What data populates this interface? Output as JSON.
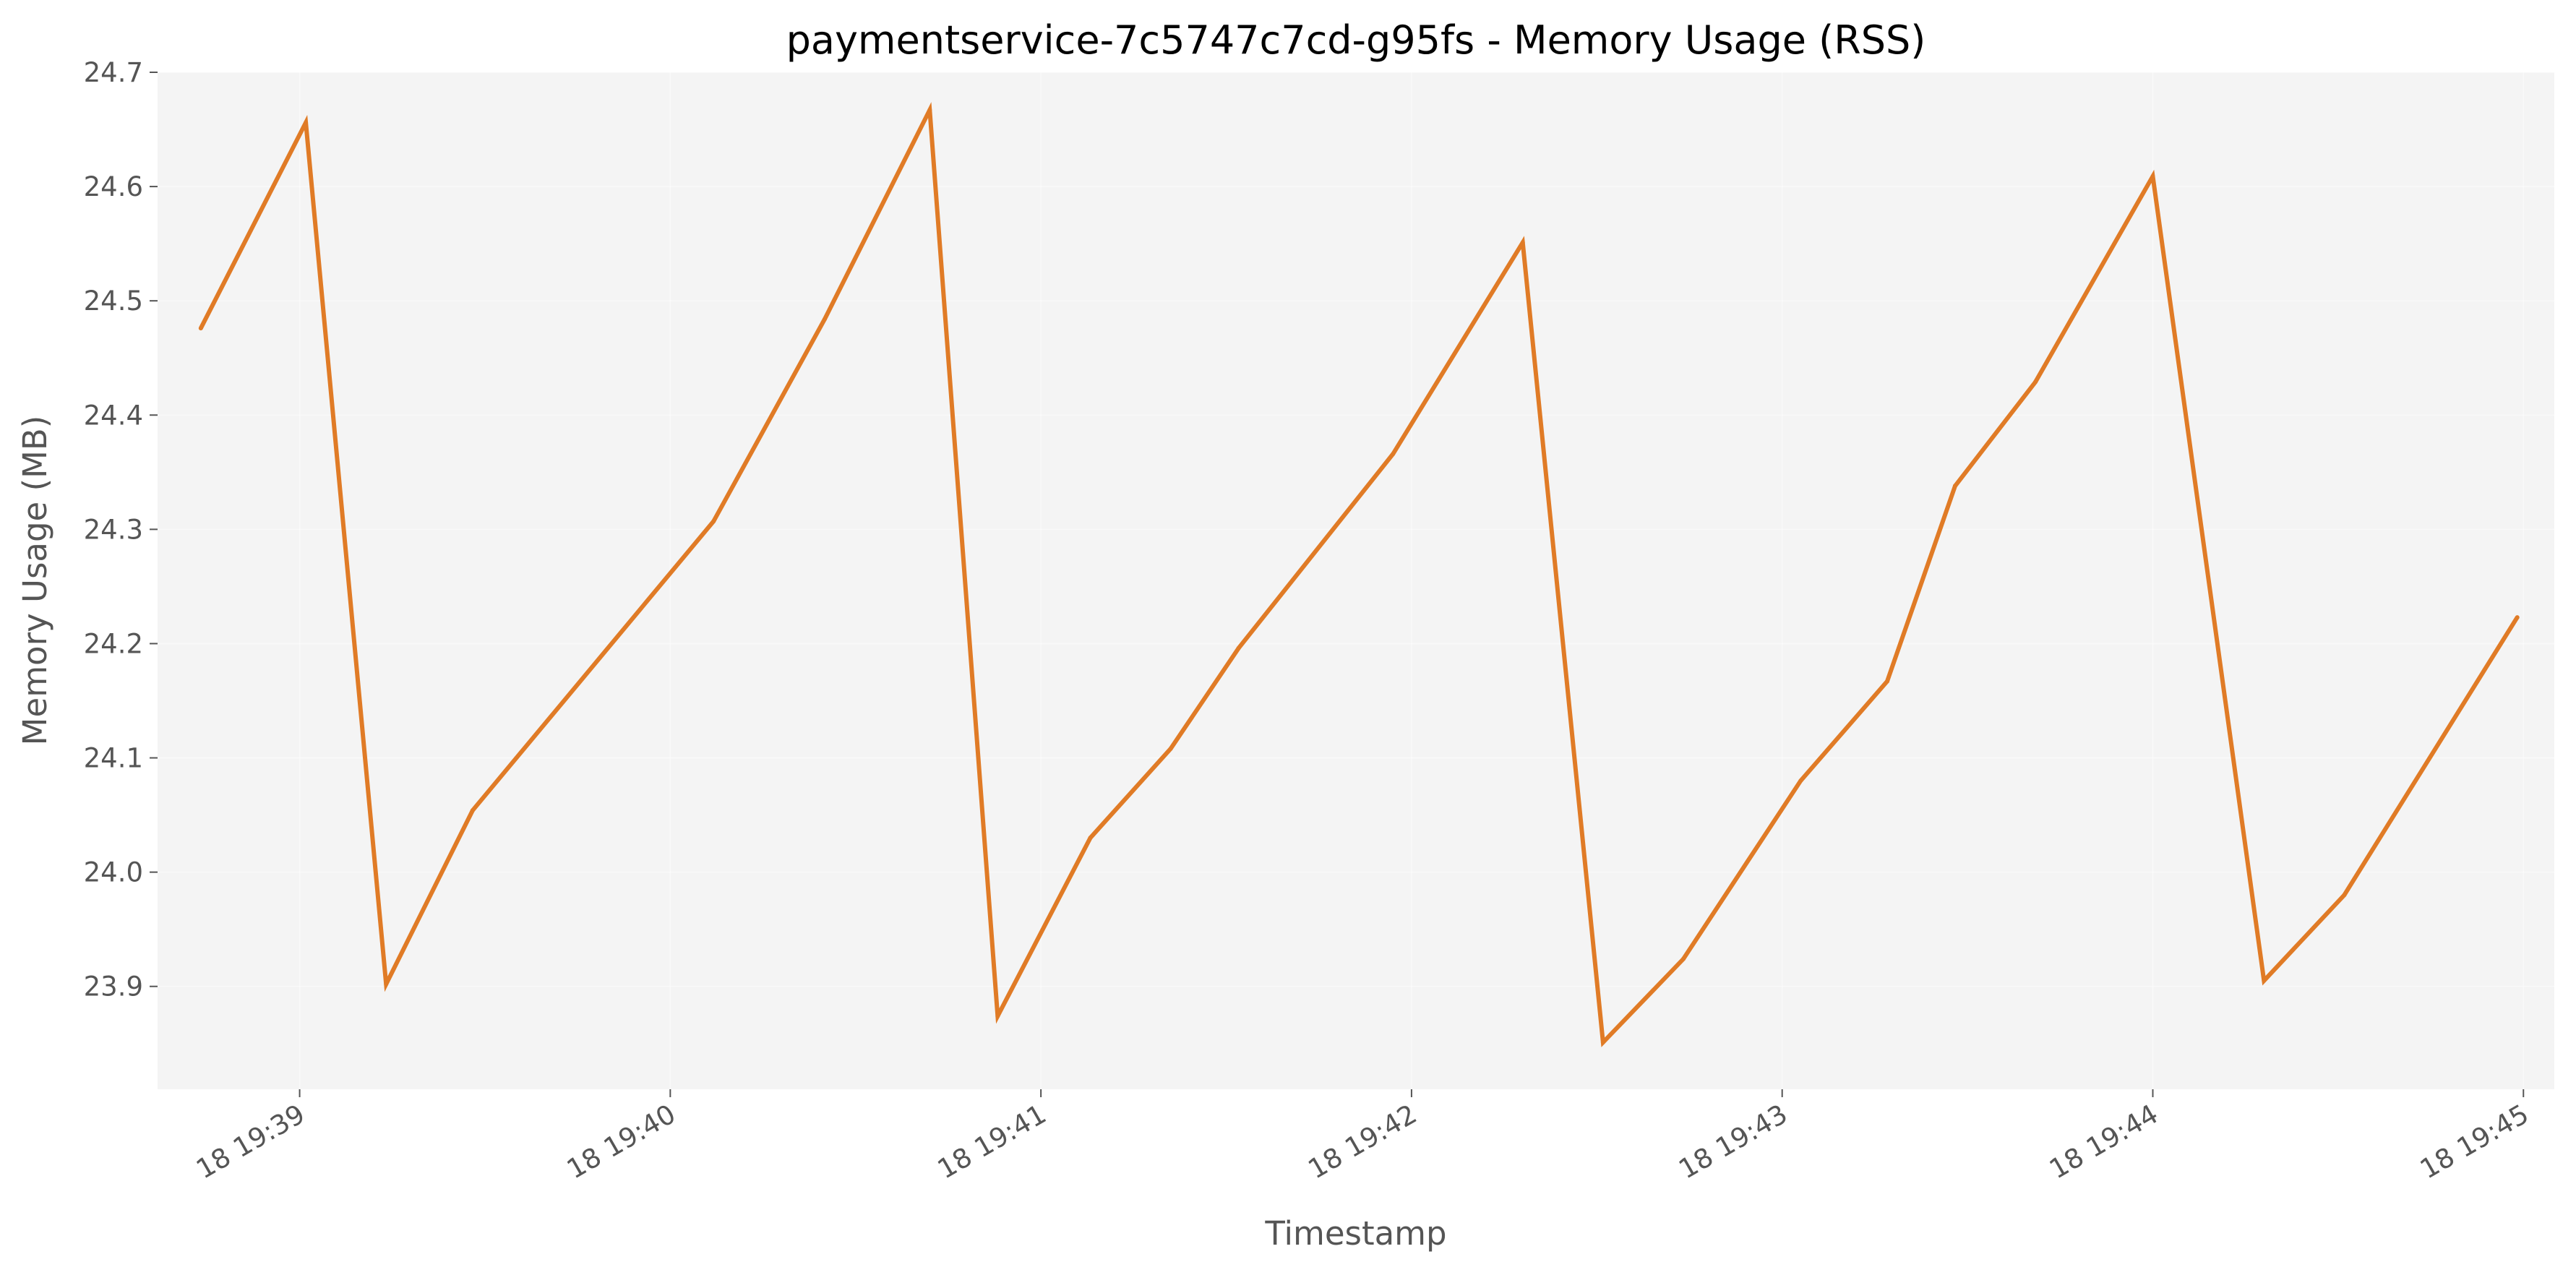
{
  "chart_data": {
    "type": "line",
    "title": "paymentservice-7c5747c7cd-g95fs - Memory Usage (RSS)",
    "xlabel": "Timestamp",
    "ylabel": "Memory Usage (MB)",
    "x_tick_labels": [
      "18 19:39",
      "18 19:40",
      "18 19:41",
      "18 19:42",
      "18 19:43",
      "18 19:44",
      "18 19:45"
    ],
    "x_tick_values": [
      "19:39:00",
      "19:40:00",
      "19:41:00",
      "19:42:00",
      "19:43:00",
      "19:44:00",
      "19:45:00"
    ],
    "y_ticks": [
      "23.9",
      "24.0",
      "24.1",
      "24.2",
      "24.3",
      "24.4",
      "24.5",
      "24.6",
      "24.7"
    ],
    "ylim": [
      23.81,
      24.7
    ],
    "xlim": [
      "19:38:37",
      "19:45:05"
    ],
    "grid": true,
    "background": "#f4f4f4",
    "line_color": "#e07b26",
    "series": [
      {
        "x": [
          "19:38:44",
          "19:39:01",
          "19:39:14",
          "19:39:28",
          "19:40:07",
          "19:40:25",
          "19:40:42",
          "19:40:53",
          "19:41:08",
          "19:41:21",
          "19:41:32",
          "19:41:57",
          "19:42:18",
          "19:42:31",
          "19:42:44",
          "19:43:03",
          "19:43:17",
          "19:43:28",
          "19:43:41",
          "19:44:00",
          "19:44:18",
          "19:44:31",
          "19:44:59"
        ],
        "values": [
          24.476,
          24.656,
          23.902,
          24.054,
          24.307,
          24.484,
          24.667,
          23.874,
          24.03,
          24.108,
          24.196,
          24.366,
          24.551,
          23.851,
          23.924,
          24.08,
          24.167,
          24.338,
          24.429,
          24.609,
          23.905,
          23.98,
          24.223
        ]
      }
    ]
  }
}
